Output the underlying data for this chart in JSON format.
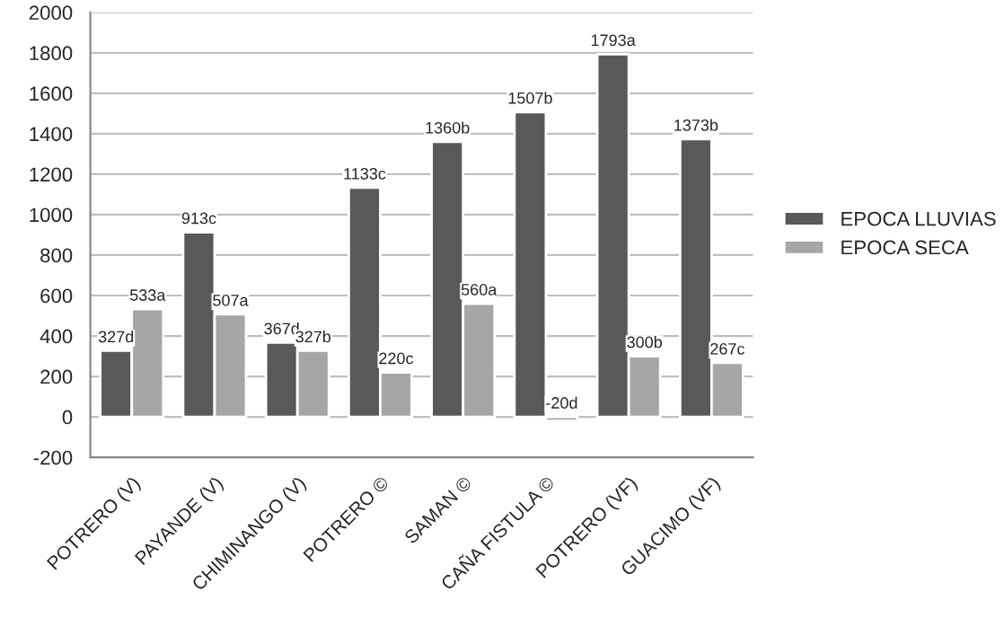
{
  "chart_data": {
    "type": "bar",
    "categories": [
      "POTRERO (V)",
      "PAYANDE (V)",
      "CHIMINANGO (V)",
      "POTRERO ©",
      "SAMAN ©",
      "CAÑA FISTULA ©",
      "POTRERO (VF)",
      "GUACIMO (VF)"
    ],
    "series": [
      {
        "name": "EPOCA LLUVIAS",
        "color": "#595959",
        "values": [
          327,
          913,
          367,
          1133,
          1360,
          1507,
          1793,
          1373
        ],
        "value_labels": [
          "327d",
          "913c",
          "367d",
          "1133c",
          "1360b",
          "1507b",
          "1793a",
          "1373b"
        ]
      },
      {
        "name": "EPOCA SECA",
        "color": "#a6a6a6",
        "values": [
          533,
          507,
          327,
          220,
          560,
          -20,
          300,
          267
        ],
        "value_labels": [
          "533a",
          "507a",
          "327b",
          "220c",
          "560a",
          "-20d",
          "300b",
          "267c"
        ]
      }
    ],
    "ylim": [
      -200,
      2000
    ],
    "yticks": [
      -200,
      0,
      200,
      400,
      600,
      800,
      1000,
      1200,
      1400,
      1600,
      1800,
      2000
    ],
    "grid": "y",
    "legend": "right"
  }
}
